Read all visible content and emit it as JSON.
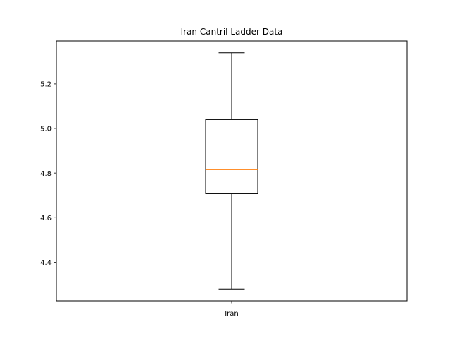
{
  "chart_data": {
    "type": "box",
    "title": "Iran Cantril Ladder Data",
    "xlabel": "",
    "ylabel": "",
    "categories": [
      "Iran"
    ],
    "boxes": [
      {
        "label": "Iran",
        "whisker_low": 4.28,
        "q1": 4.71,
        "median": 4.815,
        "q3": 5.04,
        "whisker_high": 5.34
      }
    ],
    "ylim": [
      4.227,
      5.393
    ],
    "yticks": [
      4.4,
      4.6,
      4.8,
      5.0,
      5.2
    ],
    "ytick_labels": [
      "4.4",
      "4.6",
      "4.8",
      "5.0",
      "5.2"
    ],
    "grid": false,
    "colors": {
      "box": "#000000",
      "median": "#ff7f0e",
      "whisker": "#000000"
    }
  }
}
